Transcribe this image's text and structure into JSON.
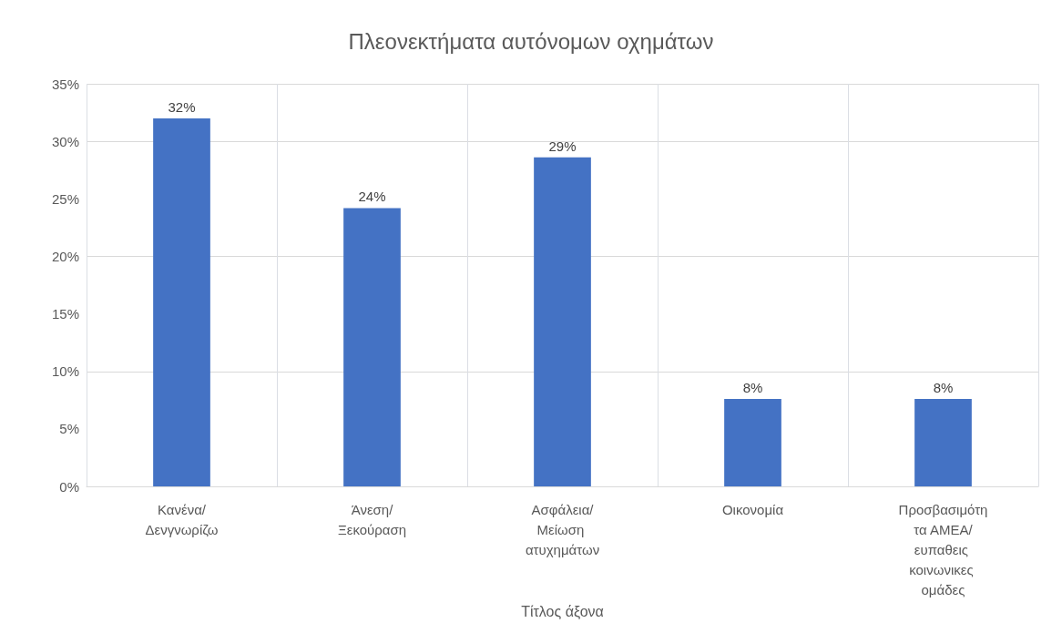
{
  "chart_data": {
    "type": "bar",
    "title": "Πλεονεκτήματα αυτόνομων οχημάτων",
    "xlabel": "Τίτλος άξονα",
    "categories": [
      "Κανένα/Δενγνωρίζω",
      "Άνεση/Ξεκούραση",
      "Ασφάλεια/Μείωση ατυχημάτων",
      "Οικονομία",
      "Προσβασιμότητα ΑΜΕΑ/ευπαθεις κοινωνικες ομάδες"
    ],
    "values": [
      32,
      24.2,
      28.6,
      7.6,
      7.6
    ],
    "value_labels": [
      "32%",
      "24%",
      "29%",
      "8%",
      "8%"
    ],
    "color": "#4472c4",
    "ylim": [
      0,
      35
    ],
    "yticks": [
      {
        "value": 0,
        "label": "0%"
      },
      {
        "value": 5,
        "label": "5%"
      },
      {
        "value": 10,
        "label": "10%"
      },
      {
        "value": 15,
        "label": "15%"
      },
      {
        "value": 20,
        "label": "20%"
      },
      {
        "value": 25,
        "label": "25%"
      },
      {
        "value": 30,
        "label": "30%"
      },
      {
        "value": 35,
        "label": "35%"
      }
    ],
    "grid": true
  }
}
